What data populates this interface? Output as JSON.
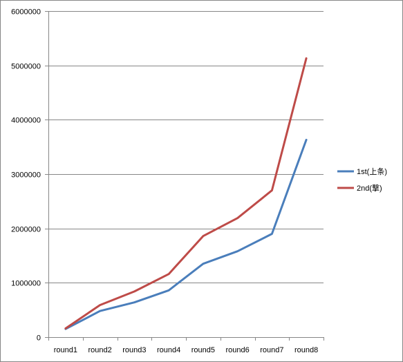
{
  "chart_data": {
    "type": "line",
    "title": "",
    "xlabel": "",
    "ylabel": "",
    "categories": [
      "round1",
      "round2",
      "round3",
      "round4",
      "round5",
      "round6",
      "round7",
      "round8"
    ],
    "y_ticks": [
      "0",
      "1000000",
      "2000000",
      "3000000",
      "4000000",
      "5000000",
      "6000000"
    ],
    "ylim": [
      0,
      6000000
    ],
    "grid": "horizontal",
    "legend_position": "right",
    "series": [
      {
        "name": "1st(上条)",
        "color": "#4a7ebb",
        "values": [
          150000,
          480000,
          640000,
          860000,
          1350000,
          1580000,
          1900000,
          3630000
        ]
      },
      {
        "name": "2nd(撃)",
        "color": "#be4b48",
        "values": [
          160000,
          590000,
          840000,
          1160000,
          1860000,
          2190000,
          2700000,
          5130000
        ]
      }
    ]
  }
}
